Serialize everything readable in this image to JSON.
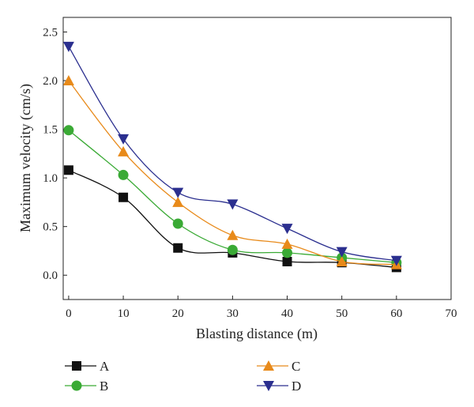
{
  "chart_data": {
    "type": "line",
    "title": "",
    "xlabel": "Blasting distance (m)",
    "ylabel": "Maximum velocity (cm/s)",
    "xlim": [
      -1,
      70
    ],
    "ylim": [
      -0.25,
      2.65
    ],
    "xticks": [
      "0",
      "10",
      "20",
      "30",
      "40",
      "50",
      "60",
      "70"
    ],
    "yticks": [
      "0.0",
      "0.5",
      "1.0",
      "1.5",
      "2.0",
      "2.5"
    ],
    "grid": false,
    "legend_position": "bottom",
    "x": [
      0,
      10,
      20,
      30,
      40,
      50,
      60
    ],
    "series": [
      {
        "name": "A",
        "color": "#111111",
        "marker": "square",
        "values": [
          1.08,
          0.8,
          0.28,
          0.23,
          0.14,
          0.13,
          0.08
        ]
      },
      {
        "name": "B",
        "color": "#3aaa35",
        "marker": "circle",
        "values": [
          1.49,
          1.03,
          0.53,
          0.26,
          0.23,
          0.18,
          0.13
        ]
      },
      {
        "name": "C",
        "color": "#e88a1a",
        "marker": "triangle-up",
        "values": [
          2.0,
          1.27,
          0.75,
          0.41,
          0.32,
          0.14,
          0.11
        ]
      },
      {
        "name": "D",
        "color": "#2b2f8f",
        "marker": "triangle-down",
        "values": [
          2.35,
          1.4,
          0.85,
          0.73,
          0.48,
          0.24,
          0.15
        ]
      }
    ]
  }
}
